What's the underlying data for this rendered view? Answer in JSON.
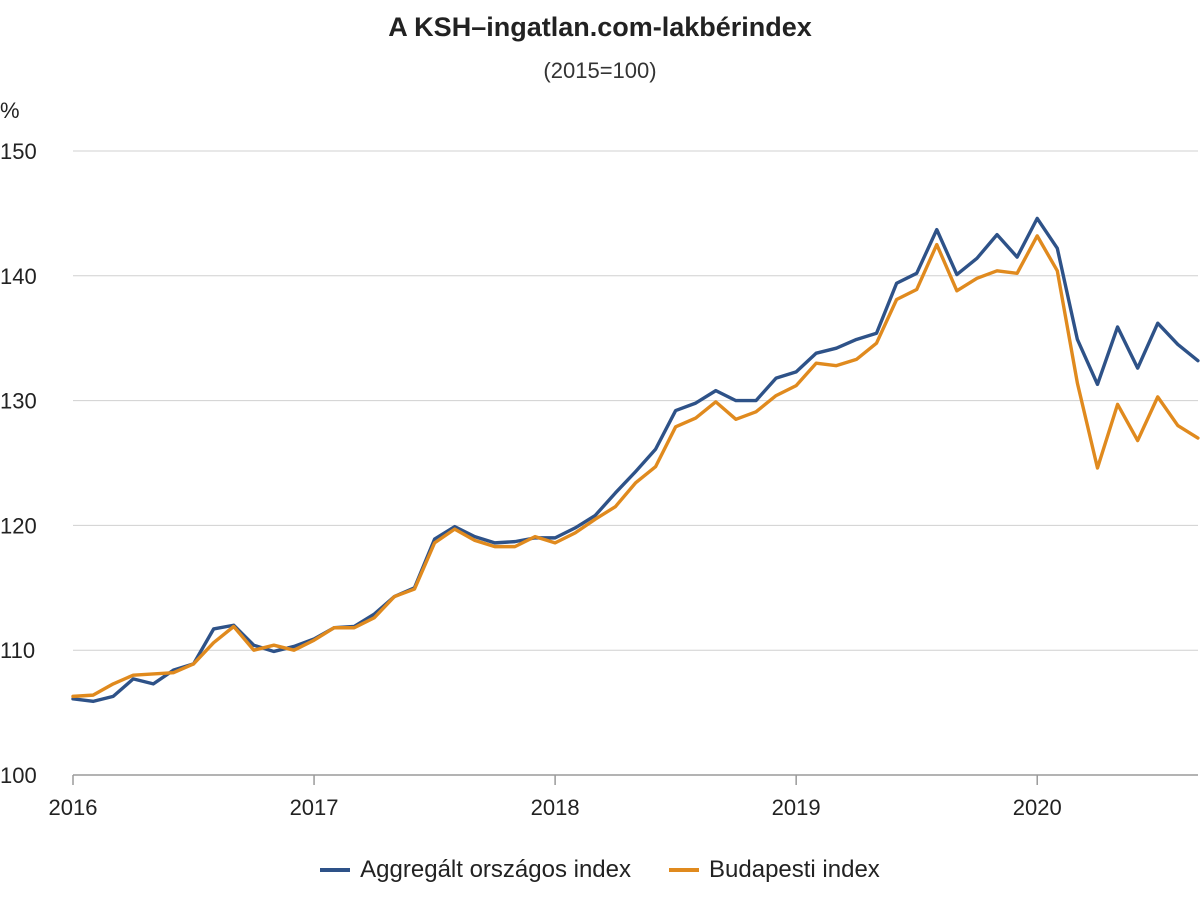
{
  "chart_data": {
    "type": "line",
    "title": "A KSH–ingatlan.com-lakbérindex",
    "subtitle": "(2015=100)",
    "ylabel": "%",
    "xlabel": "",
    "ylim": [
      100,
      150
    ],
    "yticks": [
      100,
      110,
      120,
      130,
      140,
      150
    ],
    "xlim": [
      2016.0,
      2020.667
    ],
    "xticks": [
      {
        "value": 2016,
        "label": "2016"
      },
      {
        "value": 2017,
        "label": "2017"
      },
      {
        "value": 2018,
        "label": "2018"
      },
      {
        "value": 2019,
        "label": "2019"
      },
      {
        "value": 2020,
        "label": "2020"
      }
    ],
    "grid": true,
    "legend_position": "bottom",
    "x_start": 2016.0,
    "x_step_months": 1,
    "series": [
      {
        "name": "Aggregált országos index",
        "color": "#2e5288",
        "values": [
          106.1,
          105.9,
          106.3,
          107.7,
          107.3,
          108.4,
          108.9,
          111.7,
          112.0,
          110.4,
          109.9,
          110.3,
          110.9,
          111.8,
          111.9,
          112.9,
          114.3,
          115.0,
          118.9,
          119.9,
          119.1,
          118.6,
          118.7,
          119.0,
          119.0,
          119.8,
          120.8,
          122.6,
          124.3,
          126.1,
          129.2,
          129.8,
          130.8,
          130.0,
          130.0,
          131.8,
          132.3,
          133.8,
          134.2,
          134.9,
          135.4,
          139.4,
          140.2,
          143.7,
          140.1,
          141.4,
          143.3,
          141.5,
          144.6,
          142.2,
          134.9,
          131.3,
          135.9,
          132.6,
          136.2,
          134.5,
          133.2
        ]
      },
      {
        "name": "Budapesti index",
        "color": "#e08a1e",
        "values": [
          106.3,
          106.4,
          107.3,
          108.0,
          108.1,
          108.2,
          108.9,
          110.6,
          111.9,
          110.0,
          110.4,
          110.0,
          110.8,
          111.8,
          111.8,
          112.6,
          114.3,
          114.9,
          118.6,
          119.7,
          118.8,
          118.3,
          118.3,
          119.1,
          118.6,
          119.4,
          120.5,
          121.5,
          123.4,
          124.7,
          127.9,
          128.6,
          129.9,
          128.5,
          129.1,
          130.4,
          131.2,
          133.0,
          132.8,
          133.3,
          134.6,
          138.1,
          138.9,
          142.5,
          138.8,
          139.8,
          140.4,
          140.2,
          143.2,
          140.4,
          131.4,
          124.6,
          129.7,
          126.8,
          130.3,
          128.0,
          127.0
        ]
      }
    ]
  }
}
